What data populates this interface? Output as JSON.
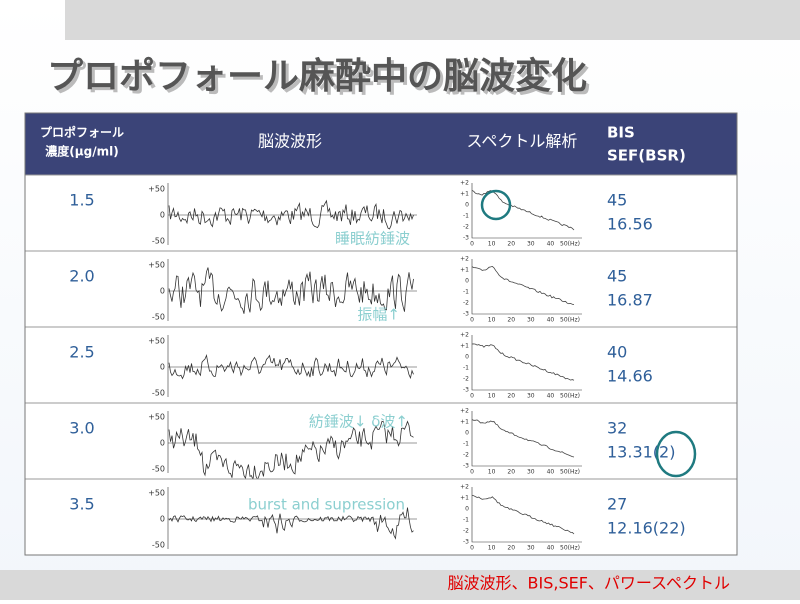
{
  "title": "プロポフォール麻酔中の脳波変化",
  "table": {
    "header": {
      "concentration": [
        "プロポフォール",
        "濃度(μg/ml)"
      ],
      "waveform": "脳波波形",
      "spectrum": "スペクトル解析",
      "values": [
        "BIS",
        "SEF(BSR)"
      ]
    },
    "eeg_axis": [
      "+50",
      "0",
      "-50"
    ],
    "spectrum_yaxis": [
      "+2",
      "+1",
      "0",
      "-1",
      "-2",
      "-3"
    ],
    "spectrum_xaxis": [
      "0",
      "10",
      "20",
      "30",
      "40",
      "50(Hz)"
    ],
    "rows": [
      {
        "concentration": "1.5",
        "annotation": "睡眠紡錘波",
        "bis": "45",
        "sef": "16.56"
      },
      {
        "concentration": "2.0",
        "annotation": "振幅↑",
        "bis": "45",
        "sef": "16.87"
      },
      {
        "concentration": "2.5",
        "bis": "40",
        "sef": "14.66"
      },
      {
        "concentration": "3.0",
        "annotation": "紡錘波↓ δ波↑",
        "bis": "32",
        "sef": "13.31(2)"
      },
      {
        "concentration": "3.5",
        "annotation": "burst and supression",
        "bis": "27",
        "sef": "12.16(22)"
      }
    ]
  },
  "footer": "脳波波形、BIS,SEF、パワースペクトル"
}
